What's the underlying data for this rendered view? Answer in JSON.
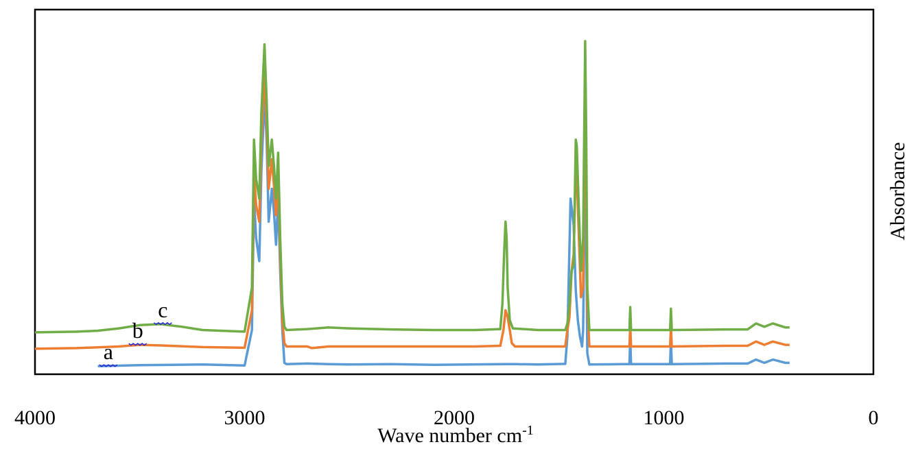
{
  "chart_data": {
    "type": "line",
    "xlabel": "Wave number cm",
    "xlabel_superscript": "-1",
    "ylabel": "Absorbance",
    "xlim": [
      4000,
      0
    ],
    "x_reversed": true,
    "ylim": [
      0,
      100
    ],
    "xticks": [
      "4000",
      "3000",
      "2000",
      "1000",
      "0"
    ],
    "grid": false,
    "legend": "none",
    "series": [
      {
        "label": "a",
        "color": "#5b9bd5",
        "label_x": 3650,
        "points": [
          [
            3700,
            1.0
          ],
          [
            3500,
            1.3
          ],
          [
            3200,
            1.5
          ],
          [
            3000,
            1.2
          ],
          [
            2965,
            12
          ],
          [
            2955,
            52
          ],
          [
            2945,
            40
          ],
          [
            2930,
            33
          ],
          [
            2920,
            60
          ],
          [
            2905,
            83
          ],
          [
            2895,
            70
          ],
          [
            2885,
            45
          ],
          [
            2870,
            55
          ],
          [
            2860,
            48
          ],
          [
            2850,
            38
          ],
          [
            2840,
            52
          ],
          [
            2830,
            30
          ],
          [
            2820,
            12
          ],
          [
            2810,
            2
          ],
          [
            2800,
            1.6
          ],
          [
            2700,
            1.8
          ],
          [
            2600,
            1.6
          ],
          [
            2500,
            1.5
          ],
          [
            2300,
            1.6
          ],
          [
            2100,
            1.4
          ],
          [
            1760,
            1.6
          ],
          [
            1720,
            1.6
          ],
          [
            1700,
            1.6
          ],
          [
            1600,
            1.5
          ],
          [
            1470,
            1.7
          ],
          [
            1460,
            10
          ],
          [
            1445,
            52
          ],
          [
            1430,
            44
          ],
          [
            1420,
            24
          ],
          [
            1410,
            15
          ],
          [
            1400,
            10
          ],
          [
            1390,
            7
          ],
          [
            1385,
            12
          ],
          [
            1375,
            64
          ],
          [
            1370,
            40
          ],
          [
            1365,
            5
          ],
          [
            1355,
            1.5
          ],
          [
            1200,
            1.6
          ],
          [
            1164,
            1.6
          ],
          [
            1160,
            9
          ],
          [
            1156,
            1.6
          ],
          [
            970,
            1.6
          ],
          [
            966,
            9
          ],
          [
            962,
            1.6
          ],
          [
            700,
            1.8
          ],
          [
            600,
            1.8
          ],
          [
            560,
            3
          ],
          [
            520,
            2
          ],
          [
            480,
            3
          ],
          [
            420,
            2
          ],
          [
            400,
            2
          ]
        ]
      },
      {
        "label": "b",
        "color": "#ed7d31",
        "label_x": 3510,
        "points": [
          [
            4000,
            6.3
          ],
          [
            3800,
            6.5
          ],
          [
            3600,
            7.0
          ],
          [
            3500,
            7.5
          ],
          [
            3400,
            7.3
          ],
          [
            3200,
            6.8
          ],
          [
            3000,
            6.6
          ],
          [
            2965,
            18
          ],
          [
            2955,
            60
          ],
          [
            2945,
            50
          ],
          [
            2930,
            45
          ],
          [
            2920,
            70
          ],
          [
            2905,
            91
          ],
          [
            2895,
            75
          ],
          [
            2885,
            55
          ],
          [
            2870,
            64
          ],
          [
            2860,
            56
          ],
          [
            2850,
            47
          ],
          [
            2840,
            61
          ],
          [
            2830,
            35
          ],
          [
            2820,
            15
          ],
          [
            2810,
            8
          ],
          [
            2800,
            7
          ],
          [
            2700,
            7
          ],
          [
            2680,
            6.5
          ],
          [
            2600,
            7
          ],
          [
            2500,
            7
          ],
          [
            2300,
            7
          ],
          [
            2100,
            7
          ],
          [
            1900,
            7
          ],
          [
            1780,
            7.2
          ],
          [
            1765,
            12
          ],
          [
            1755,
            18
          ],
          [
            1745,
            16
          ],
          [
            1735,
            12
          ],
          [
            1725,
            8
          ],
          [
            1710,
            7
          ],
          [
            1600,
            7
          ],
          [
            1470,
            7
          ],
          [
            1460,
            12
          ],
          [
            1450,
            16
          ],
          [
            1440,
            30
          ],
          [
            1430,
            35
          ],
          [
            1420,
            62
          ],
          [
            1415,
            60
          ],
          [
            1405,
            40
          ],
          [
            1395,
            22
          ],
          [
            1385,
            25
          ],
          [
            1375,
            95
          ],
          [
            1370,
            60
          ],
          [
            1365,
            20
          ],
          [
            1355,
            7
          ],
          [
            1200,
            7
          ],
          [
            1164,
            7
          ],
          [
            1160,
            13
          ],
          [
            1156,
            7
          ],
          [
            970,
            7
          ],
          [
            966,
            13
          ],
          [
            962,
            7
          ],
          [
            700,
            7.2
          ],
          [
            600,
            7.2
          ],
          [
            560,
            8.5
          ],
          [
            520,
            7.5
          ],
          [
            480,
            8.5
          ],
          [
            420,
            7.5
          ],
          [
            400,
            7.5
          ]
        ]
      },
      {
        "label": "c",
        "color": "#70ad47",
        "label_x": 3390,
        "points": [
          [
            4000,
            11.3
          ],
          [
            3800,
            11.5
          ],
          [
            3700,
            11.8
          ],
          [
            3600,
            12.5
          ],
          [
            3500,
            13.5
          ],
          [
            3400,
            13.8
          ],
          [
            3300,
            13.0
          ],
          [
            3200,
            12.0
          ],
          [
            3000,
            11.5
          ],
          [
            2965,
            25
          ],
          [
            2955,
            70
          ],
          [
            2945,
            58
          ],
          [
            2930,
            52
          ],
          [
            2920,
            78
          ],
          [
            2905,
            99
          ],
          [
            2895,
            82
          ],
          [
            2885,
            62
          ],
          [
            2870,
            70
          ],
          [
            2860,
            62
          ],
          [
            2850,
            52
          ],
          [
            2840,
            66
          ],
          [
            2830,
            40
          ],
          [
            2820,
            20
          ],
          [
            2810,
            13
          ],
          [
            2800,
            12
          ],
          [
            2700,
            12.3
          ],
          [
            2600,
            12.8
          ],
          [
            2500,
            12.5
          ],
          [
            2300,
            12.2
          ],
          [
            2100,
            12
          ],
          [
            1900,
            12
          ],
          [
            1780,
            12.3
          ],
          [
            1770,
            20
          ],
          [
            1762,
            35
          ],
          [
            1755,
            45
          ],
          [
            1750,
            40
          ],
          [
            1745,
            25
          ],
          [
            1735,
            15
          ],
          [
            1720,
            12.5
          ],
          [
            1600,
            12
          ],
          [
            1470,
            12
          ],
          [
            1460,
            14
          ],
          [
            1450,
            20
          ],
          [
            1440,
            30
          ],
          [
            1430,
            32
          ],
          [
            1420,
            70
          ],
          [
            1415,
            68
          ],
          [
            1405,
            48
          ],
          [
            1395,
            30
          ],
          [
            1385,
            40
          ],
          [
            1375,
            100
          ],
          [
            1370,
            70
          ],
          [
            1365,
            25
          ],
          [
            1355,
            12
          ],
          [
            1200,
            12
          ],
          [
            1164,
            12
          ],
          [
            1160,
            19
          ],
          [
            1156,
            12
          ],
          [
            970,
            12
          ],
          [
            966,
            18.5
          ],
          [
            962,
            12
          ],
          [
            700,
            12.2
          ],
          [
            600,
            12.2
          ],
          [
            560,
            14
          ],
          [
            520,
            13
          ],
          [
            480,
            14
          ],
          [
            420,
            12.8
          ],
          [
            400,
            12.8
          ]
        ]
      }
    ]
  }
}
